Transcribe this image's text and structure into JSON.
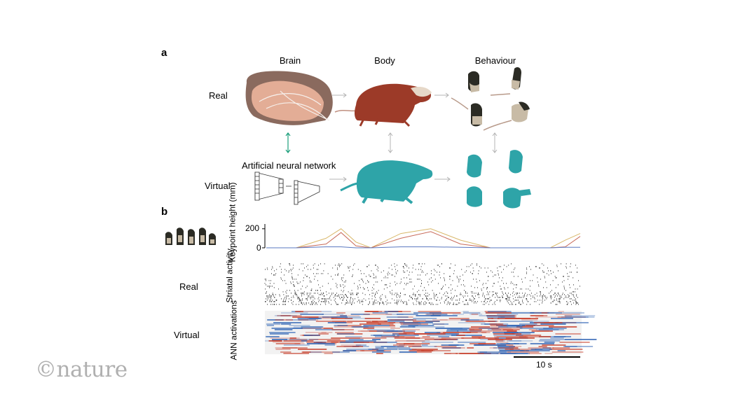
{
  "panel_a": {
    "letter": "a",
    "columns": [
      "Brain",
      "Body",
      "Behaviour"
    ],
    "rows": [
      "Real",
      "Virtual"
    ],
    "ann_label": "Artificial neural network",
    "colors": {
      "brain_dark": "#8a6a5e",
      "brain_light": "#e3ad96",
      "muscle": "#9c3a28",
      "virtual": "#2ea4a8",
      "arrow_green": "#1a9e7a",
      "arrow_grey": "#b4b4b4"
    }
  },
  "panel_b": {
    "letter": "b",
    "row_labels": {
      "real": "Real",
      "virtual": "Virtual"
    },
    "keypoint_label": "Keypoint height (mm)",
    "striatal_label": "Striatal activity",
    "ann_activations_label": "ANN activations",
    "y_ticks": [
      "200",
      "0"
    ],
    "scalebar_label": "10 s",
    "heatmap_colors": {
      "positive": "#c8402c",
      "negative": "#2c62b4",
      "neutral": "#f2f2f2"
    }
  },
  "watermark": "©nature",
  "chart_data": {
    "type": "line",
    "title": "",
    "ylabel": "Keypoint height (mm)",
    "xlabel": "",
    "ylim": [
      0,
      250
    ],
    "x": [
      0,
      4,
      8,
      10,
      12,
      14,
      18,
      22,
      26,
      30,
      34,
      38,
      40,
      42
    ],
    "series": [
      {
        "values": [
          0,
          0,
          100,
          200,
          60,
          0,
          150,
          200,
          80,
          0,
          0,
          0,
          80,
          150
        ]
      },
      {
        "values": [
          0,
          0,
          40,
          160,
          20,
          0,
          100,
          170,
          40,
          0,
          0,
          0,
          10,
          120
        ]
      },
      {
        "values": [
          0,
          0,
          10,
          10,
          0,
          0,
          10,
          10,
          5,
          0,
          0,
          0,
          5,
          5
        ]
      }
    ]
  }
}
